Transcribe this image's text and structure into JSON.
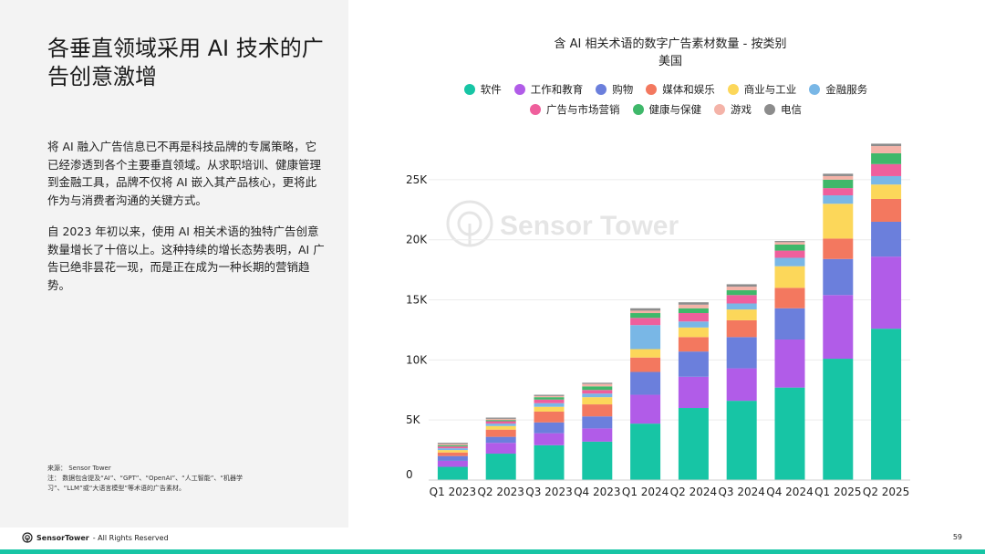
{
  "slide": {
    "title": "各垂直领域采用 AI 技术的广告创意激增",
    "paragraphs": [
      "将 AI 融入广告信息已不再是科技品牌的专属策略，它已经渗透到各个主要垂直领域。从求职培训、健康管理到金融工具，品牌不仅将 AI 嵌入其产品核心，更将此作为与消费者沟通的关键方式。",
      "自 2023 年初以来，使用 AI 相关术语的独特广告创意数量增长了十倍以上。这种持续的增长态势表明，AI 广告已绝非昙花一现，而是正在成为一种长期的营销趋势。"
    ],
    "source": "来源： Sensor Tower",
    "note": "注： 数据包含提及“AI”、“GPT”、“OpenAI”、“人工智能”、“机器学习”、“LLM”或“大语言模型”等术语的广告素材。",
    "footer_brand": "SensorTower",
    "footer_rights": "- All Rights Reserved",
    "page_number": "59",
    "watermark": "Sensor Tower"
  },
  "colors": {
    "panel_bg": "#f3f3f3",
    "accent": "#17c5a5"
  },
  "chart_data": {
    "type": "bar",
    "stacked": true,
    "title": "含 AI 相关术语的数字广告素材数量 - 按类别",
    "subtitle": "美国",
    "categories": [
      "Q1 2023",
      "Q2 2023",
      "Q3 2023",
      "Q4 2023",
      "Q1 2024",
      "Q2 2024",
      "Q3 2024",
      "Q4 2024",
      "Q1 2025",
      "Q2 2025"
    ],
    "ylim": [
      0,
      27500
    ],
    "yticks": [
      0,
      5000,
      10000,
      15000,
      20000,
      25000
    ],
    "ytick_labels": [
      "0",
      "5K",
      "10K",
      "15K",
      "20K",
      "25K"
    ],
    "xlabel": "",
    "ylabel": "",
    "grid": true,
    "legend_position": "top",
    "series": [
      {
        "name": "软件",
        "color": "#17c5a5",
        "values": [
          1100,
          2200,
          2900,
          3200,
          4700,
          6000,
          6600,
          7700,
          10100,
          12600
        ]
      },
      {
        "name": "工作和教育",
        "color": "#b15ce8",
        "values": [
          500,
          900,
          1000,
          1100,
          2400,
          2600,
          2700,
          4000,
          5300,
          6000
        ]
      },
      {
        "name": "购物",
        "color": "#6b7fdc",
        "values": [
          400,
          500,
          900,
          1000,
          1900,
          2100,
          2600,
          2600,
          3000,
          2900
        ]
      },
      {
        "name": "媒体和娱乐",
        "color": "#f3785f",
        "values": [
          300,
          600,
          900,
          1000,
          1200,
          1200,
          1400,
          1700,
          1700,
          1900
        ]
      },
      {
        "name": "商业与工业",
        "color": "#fcd75a",
        "values": [
          200,
          300,
          400,
          600,
          700,
          800,
          900,
          1800,
          2900,
          1200
        ]
      },
      {
        "name": "金融服务",
        "color": "#79b7e6",
        "values": [
          150,
          200,
          300,
          300,
          2000,
          500,
          500,
          700,
          700,
          700
        ]
      },
      {
        "name": "广告与市场营销",
        "color": "#ef5f9c",
        "values": [
          150,
          200,
          300,
          300,
          600,
          700,
          700,
          600,
          600,
          1000
        ]
      },
      {
        "name": "健康与保健",
        "color": "#3fb86a",
        "values": [
          100,
          100,
          200,
          300,
          400,
          400,
          400,
          500,
          700,
          900
        ]
      },
      {
        "name": "游戏",
        "color": "#f4b3a8",
        "values": [
          100,
          100,
          100,
          200,
          200,
          300,
          300,
          200,
          300,
          600
        ]
      },
      {
        "name": "电信",
        "color": "#8c8c8c",
        "values": [
          100,
          100,
          100,
          100,
          200,
          200,
          200,
          100,
          200,
          200
        ]
      }
    ]
  }
}
